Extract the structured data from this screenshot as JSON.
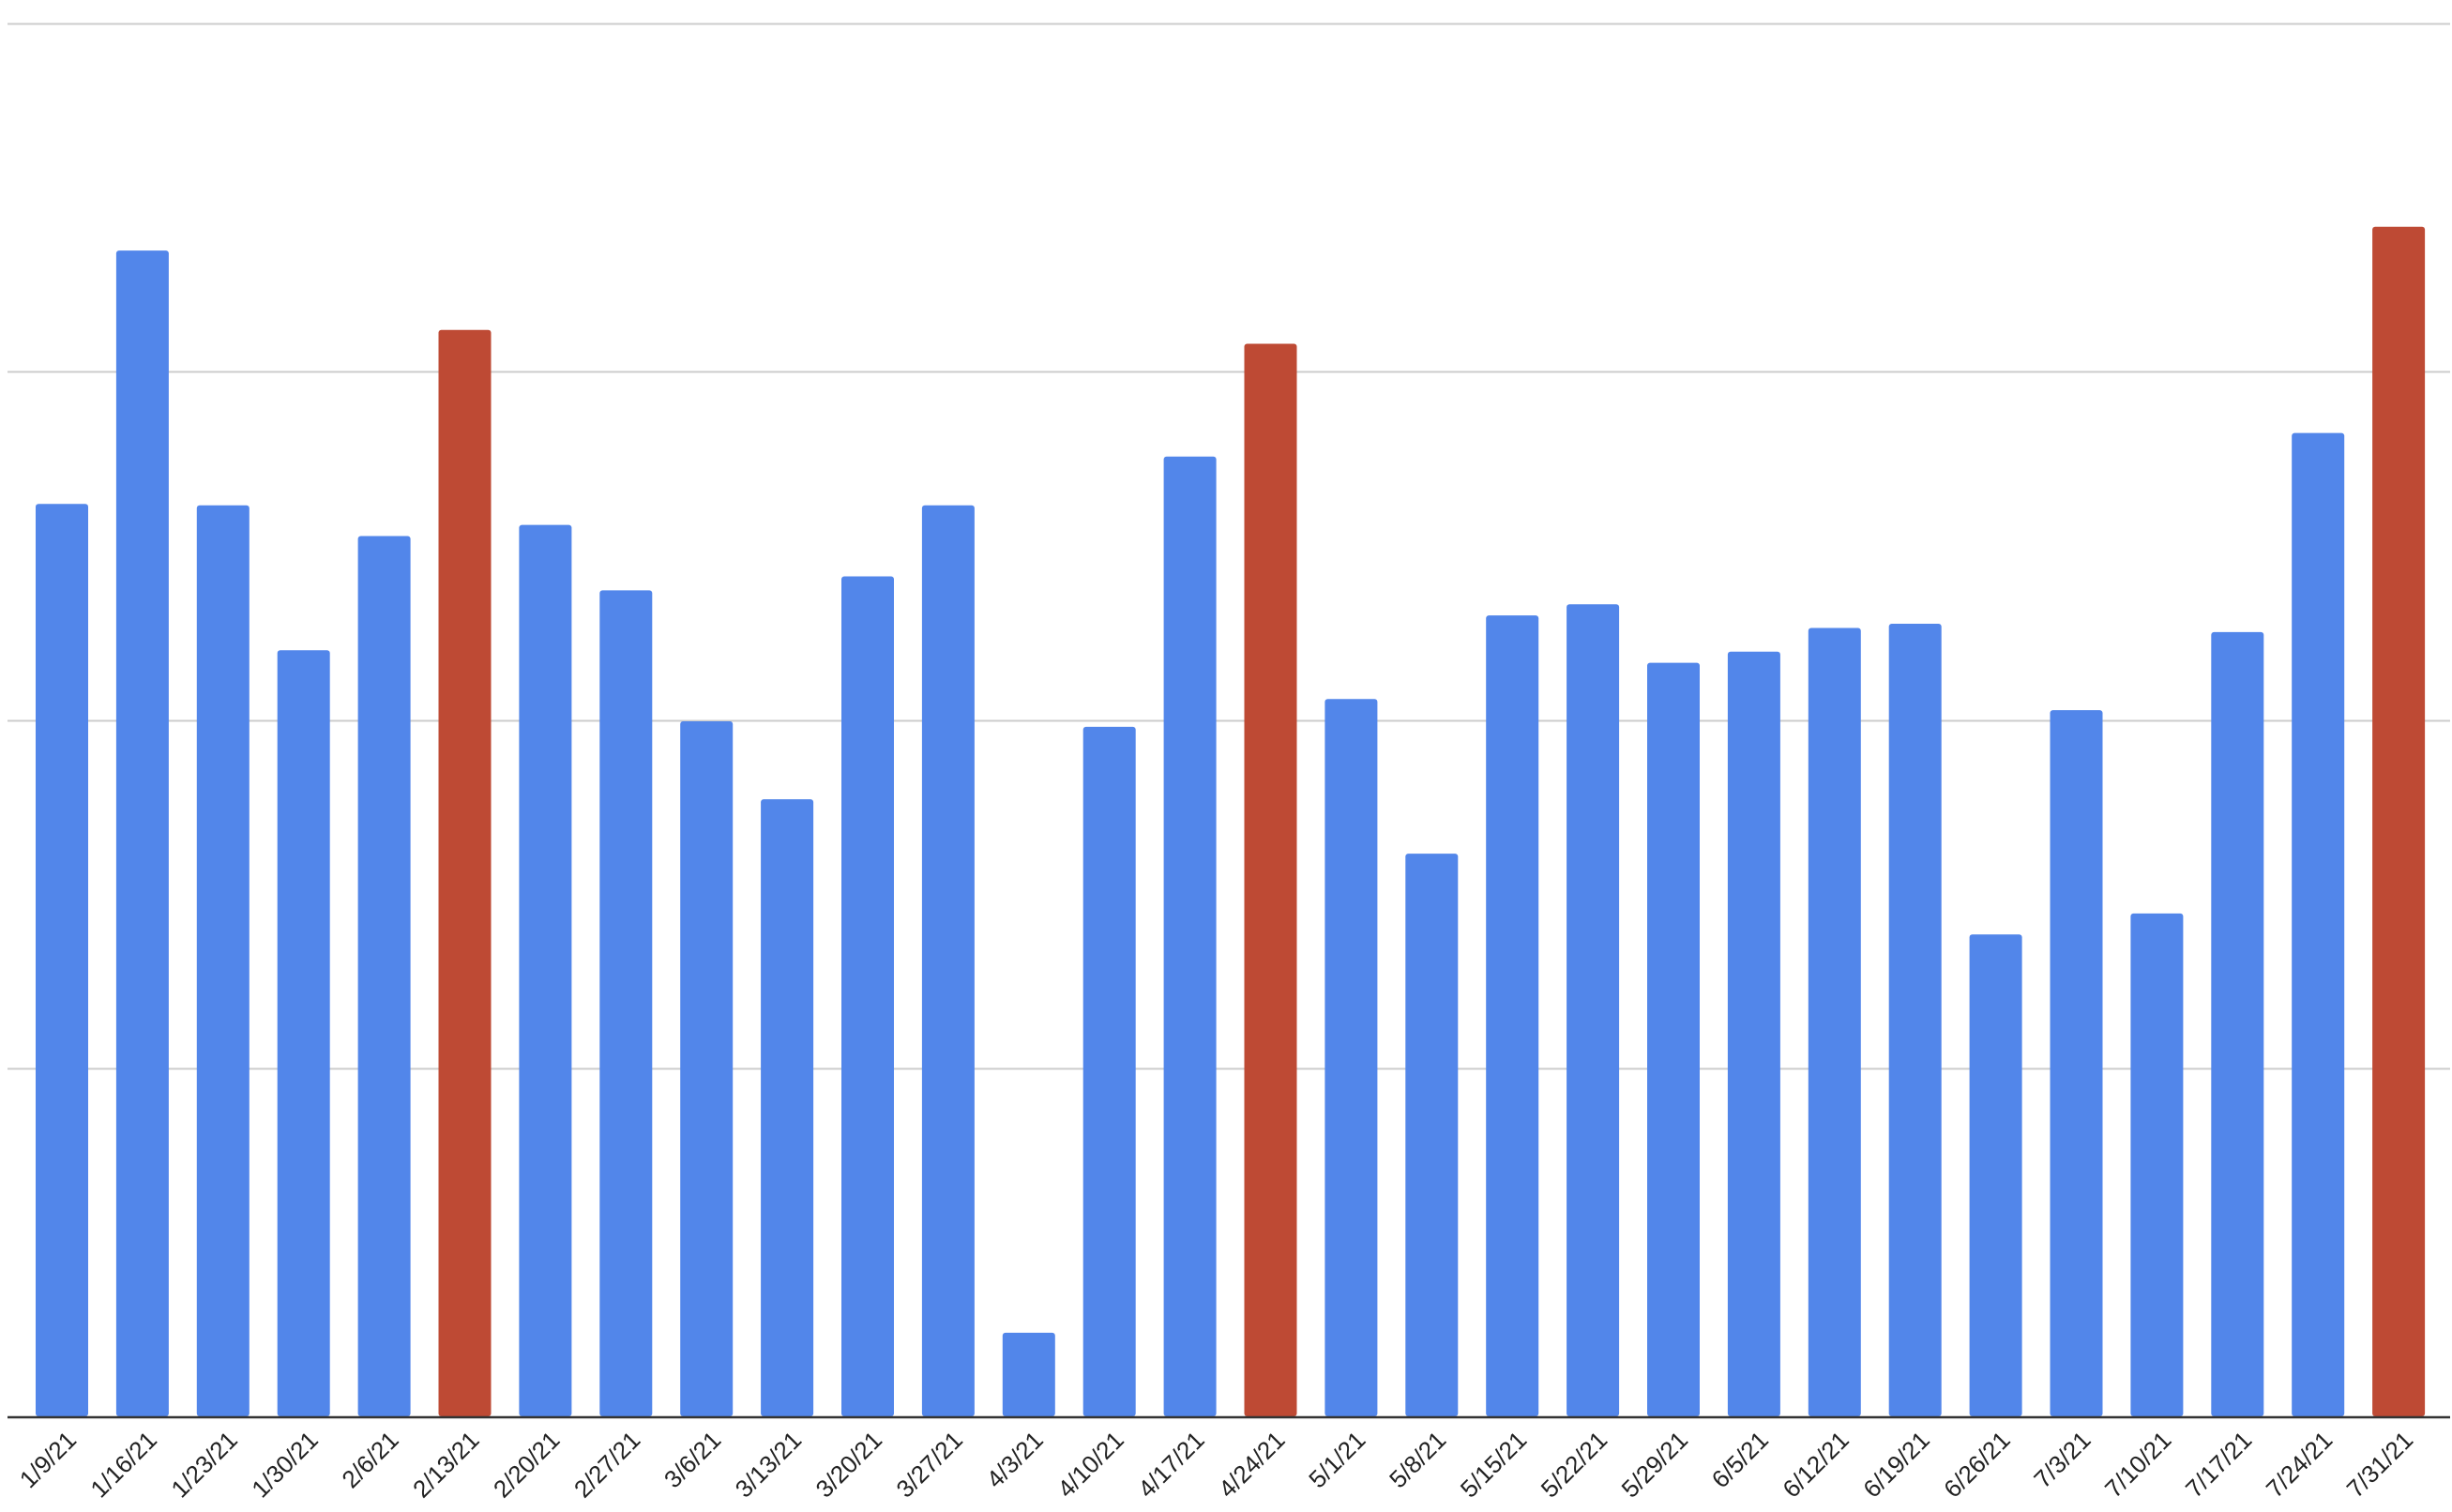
{
  "chart_data": {
    "type": "bar",
    "title": "",
    "xlabel": "",
    "ylabel": "",
    "ylim": [
      0,
      100
    ],
    "grid": true,
    "gridlines": [
      0,
      25,
      50,
      75,
      100
    ],
    "y_tick_labels_shown": false,
    "legend": "none",
    "colors": {
      "default_bar": "#5286EA",
      "highlight_bar": "#BE4A34",
      "gridline": "#CCCCCC",
      "axis": "#333333"
    },
    "categories": [
      "1/9/21",
      "1/16/21",
      "1/23/21",
      "1/30/21",
      "2/6/21",
      "2/13/21",
      "2/20/21",
      "2/27/21",
      "3/6/21",
      "3/13/21",
      "3/20/21",
      "3/27/21",
      "4/3/21",
      "4/10/21",
      "4/17/21",
      "4/24/21",
      "5/1/21",
      "5/8/21",
      "5/15/21",
      "5/22/21",
      "5/29/21",
      "6/5/21",
      "6/12/21",
      "6/19/21",
      "6/26/21",
      "7/3/21",
      "7/10/21",
      "7/17/21",
      "7/24/21",
      "7/31/21"
    ],
    "values": [
      65.5,
      83.7,
      65.4,
      55.0,
      63.2,
      78.0,
      64.0,
      59.3,
      49.9,
      44.3,
      60.3,
      65.4,
      6.0,
      49.5,
      68.9,
      77.0,
      51.5,
      40.4,
      57.5,
      58.3,
      54.1,
      54.9,
      56.6,
      56.9,
      34.6,
      50.7,
      36.1,
      56.3,
      70.6,
      85.4
    ],
    "highlighted": [
      5,
      15,
      29
    ]
  }
}
